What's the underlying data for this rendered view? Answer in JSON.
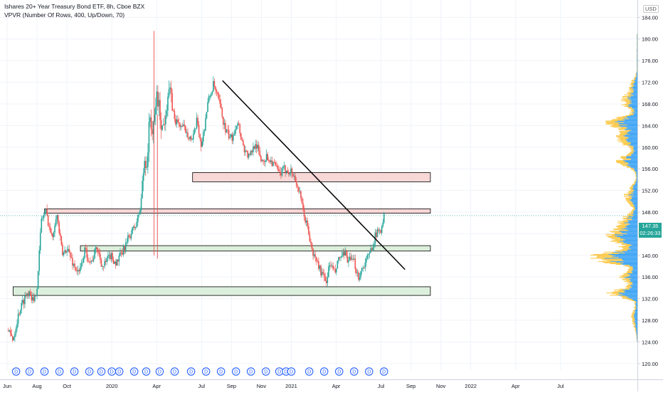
{
  "legend": {
    "title": "Ishares 20+ Year Treasury Bond ETF, 8h, Cboe BZX",
    "indicator": "VPVR (Number Of Rows, 400, Up/Down, 70)"
  },
  "currency": "USD",
  "last_price": "147.35",
  "countdown": "02:26:33",
  "colors": {
    "up": "#26a69a",
    "down": "#ef5350",
    "vp_up": "#2196f3",
    "vp_down": "#fbc02d",
    "zone_red": "#f8d7d7",
    "zone_green": "#dcefdc",
    "trendline": "#000000",
    "dividend": "#2962ff"
  },
  "chart_data": {
    "type": "candlestick",
    "title": "Ishares 20+ Year Treasury Bond ETF, 8h, Cboe BZX",
    "ylim": [
      118.8,
      187.2
    ],
    "y_ticks": [
      120,
      124,
      128,
      132,
      136,
      140,
      144,
      148,
      152,
      156,
      160,
      164,
      168,
      172,
      176,
      180,
      184,
      188
    ],
    "y_tick_labels": [
      "120.00",
      "124.00",
      "128.00",
      "132.00",
      "136.00",
      "140.00",
      "144.00",
      "148.00",
      "152.00",
      "156.00",
      "160.00",
      "164.00",
      "168.00",
      "172.00",
      "176.00",
      "180.00",
      "184.00",
      "188.00"
    ],
    "x_ticks": [
      "Jun",
      "Aug",
      "Oct",
      "2020",
      "Apr",
      "Jul",
      "Sep",
      "Nov",
      "2021",
      "Apr",
      "Jul",
      "Sep",
      "Nov",
      "2022",
      "Apr",
      "Jul"
    ],
    "x_tick_t": [
      0,
      2,
      4,
      7,
      10,
      13,
      15,
      17,
      19,
      22,
      25,
      27,
      29,
      31,
      34,
      37
    ],
    "t_last": 25.2,
    "t_end": 41,
    "price_path": [
      [
        0,
        126
      ],
      [
        0.4,
        124.6
      ],
      [
        0.8,
        129.6
      ],
      [
        1.2,
        132.4
      ],
      [
        1.5,
        133.6
      ],
      [
        1.8,
        131
      ],
      [
        2.0,
        134.5
      ],
      [
        2.3,
        146.8
      ],
      [
        2.6,
        148
      ],
      [
        3.0,
        143
      ],
      [
        3.3,
        148
      ],
      [
        3.7,
        140
      ],
      [
        4.0,
        141.5
      ],
      [
        4.4,
        138.5
      ],
      [
        4.8,
        136.5
      ],
      [
        5.2,
        141
      ],
      [
        5.6,
        138.6
      ],
      [
        6.0,
        141.5
      ],
      [
        6.4,
        137.8
      ],
      [
        6.9,
        140
      ],
      [
        7.3,
        138.5
      ],
      [
        7.8,
        141
      ],
      [
        8.2,
        143.8
      ],
      [
        8.6,
        145.5
      ],
      [
        8.9,
        148.5
      ],
      [
        9.2,
        158
      ],
      [
        9.35,
        157
      ],
      [
        9.55,
        166
      ],
      [
        9.75,
        162
      ],
      [
        10.0,
        170
      ],
      [
        10.4,
        163
      ],
      [
        10.8,
        171
      ],
      [
        11.2,
        165
      ],
      [
        11.6,
        164
      ],
      [
        12.0,
        163
      ],
      [
        12.4,
        161
      ],
      [
        12.7,
        165
      ],
      [
        13.0,
        160
      ],
      [
        13.4,
        168
      ],
      [
        13.8,
        171.6
      ],
      [
        14.2,
        168
      ],
      [
        14.6,
        163
      ],
      [
        15.0,
        161.5
      ],
      [
        15.4,
        165
      ],
      [
        15.8,
        160
      ],
      [
        16.2,
        158
      ],
      [
        16.6,
        161
      ],
      [
        17.0,
        157.5
      ],
      [
        17.4,
        158.2
      ],
      [
        17.8,
        157
      ],
      [
        18.2,
        155
      ],
      [
        18.6,
        156
      ],
      [
        19.0,
        155.5
      ],
      [
        19.2,
        154.5
      ],
      [
        19.5,
        152
      ],
      [
        19.8,
        148
      ],
      [
        20.1,
        145
      ],
      [
        20.4,
        140.5
      ],
      [
        20.7,
        139
      ],
      [
        21.0,
        136.8
      ],
      [
        21.3,
        135
      ],
      [
        21.6,
        138.6
      ],
      [
        21.9,
        136.5
      ],
      [
        22.2,
        139.5
      ],
      [
        22.6,
        140
      ],
      [
        22.9,
        139
      ],
      [
        23.2,
        138.7
      ],
      [
        23.5,
        136
      ],
      [
        23.8,
        138
      ],
      [
        24.2,
        140
      ],
      [
        24.6,
        143.5
      ],
      [
        25.0,
        145
      ],
      [
        25.2,
        147.35
      ]
    ],
    "wick_spikes": [
      {
        "t": 9.82,
        "low": 140,
        "high": 181.5
      },
      {
        "t": 10.05,
        "low": 139.4,
        "high": 166
      }
    ],
    "zones": [
      {
        "t0": 12.4,
        "t1": 28.3,
        "y0": 153.6,
        "y1": 155.3,
        "color": "red"
      },
      {
        "t0": 2.5,
        "t1": 28.3,
        "y0": 147.8,
        "y1": 148.6,
        "color": "red"
      },
      {
        "t0": 4.9,
        "t1": 28.3,
        "y0": 140.8,
        "y1": 141.8,
        "color": "green"
      },
      {
        "t0": 0.4,
        "t1": 28.3,
        "y0": 132.6,
        "y1": 134.2,
        "color": "green"
      }
    ],
    "trendline": {
      "t0": 14.4,
      "y0": 172.3,
      "t1": 26.6,
      "y1": 137.4
    },
    "dividends_t": [
      0.6,
      1.5,
      2.5,
      3.5,
      4.5,
      5.5,
      6.3,
      7.0,
      7.5,
      8.5,
      9.3,
      10.2,
      11.2,
      12.3,
      13.3,
      14.3,
      15.3,
      16.3,
      17.3,
      18.2,
      18.65,
      19.0,
      20.2,
      21.2,
      22.2,
      23.2,
      24.2,
      25.2
    ],
    "volume_profile": {
      "y_min": 124,
      "y_max": 181,
      "peaks": [
        {
          "y": 139.6,
          "w": 1.0,
          "s": 0.9
        },
        {
          "y": 133.0,
          "w": 0.62,
          "s": 0.7
        },
        {
          "y": 143.5,
          "w": 0.55,
          "s": 1.4
        },
        {
          "y": 164.5,
          "w": 0.6,
          "s": 0.9
        },
        {
          "y": 161.5,
          "w": 0.45,
          "s": 1.0
        },
        {
          "y": 157.5,
          "w": 0.38,
          "s": 1.0
        },
        {
          "y": 168.5,
          "w": 0.3,
          "s": 1.2
        },
        {
          "y": 151.0,
          "w": 0.22,
          "s": 1.5
        },
        {
          "y": 146.5,
          "w": 0.26,
          "s": 1.0
        },
        {
          "y": 136.0,
          "w": 0.3,
          "s": 1.0
        },
        {
          "y": 128.5,
          "w": 0.1,
          "s": 1.5
        },
        {
          "y": 171.5,
          "w": 0.12,
          "s": 1.0
        }
      ]
    }
  }
}
